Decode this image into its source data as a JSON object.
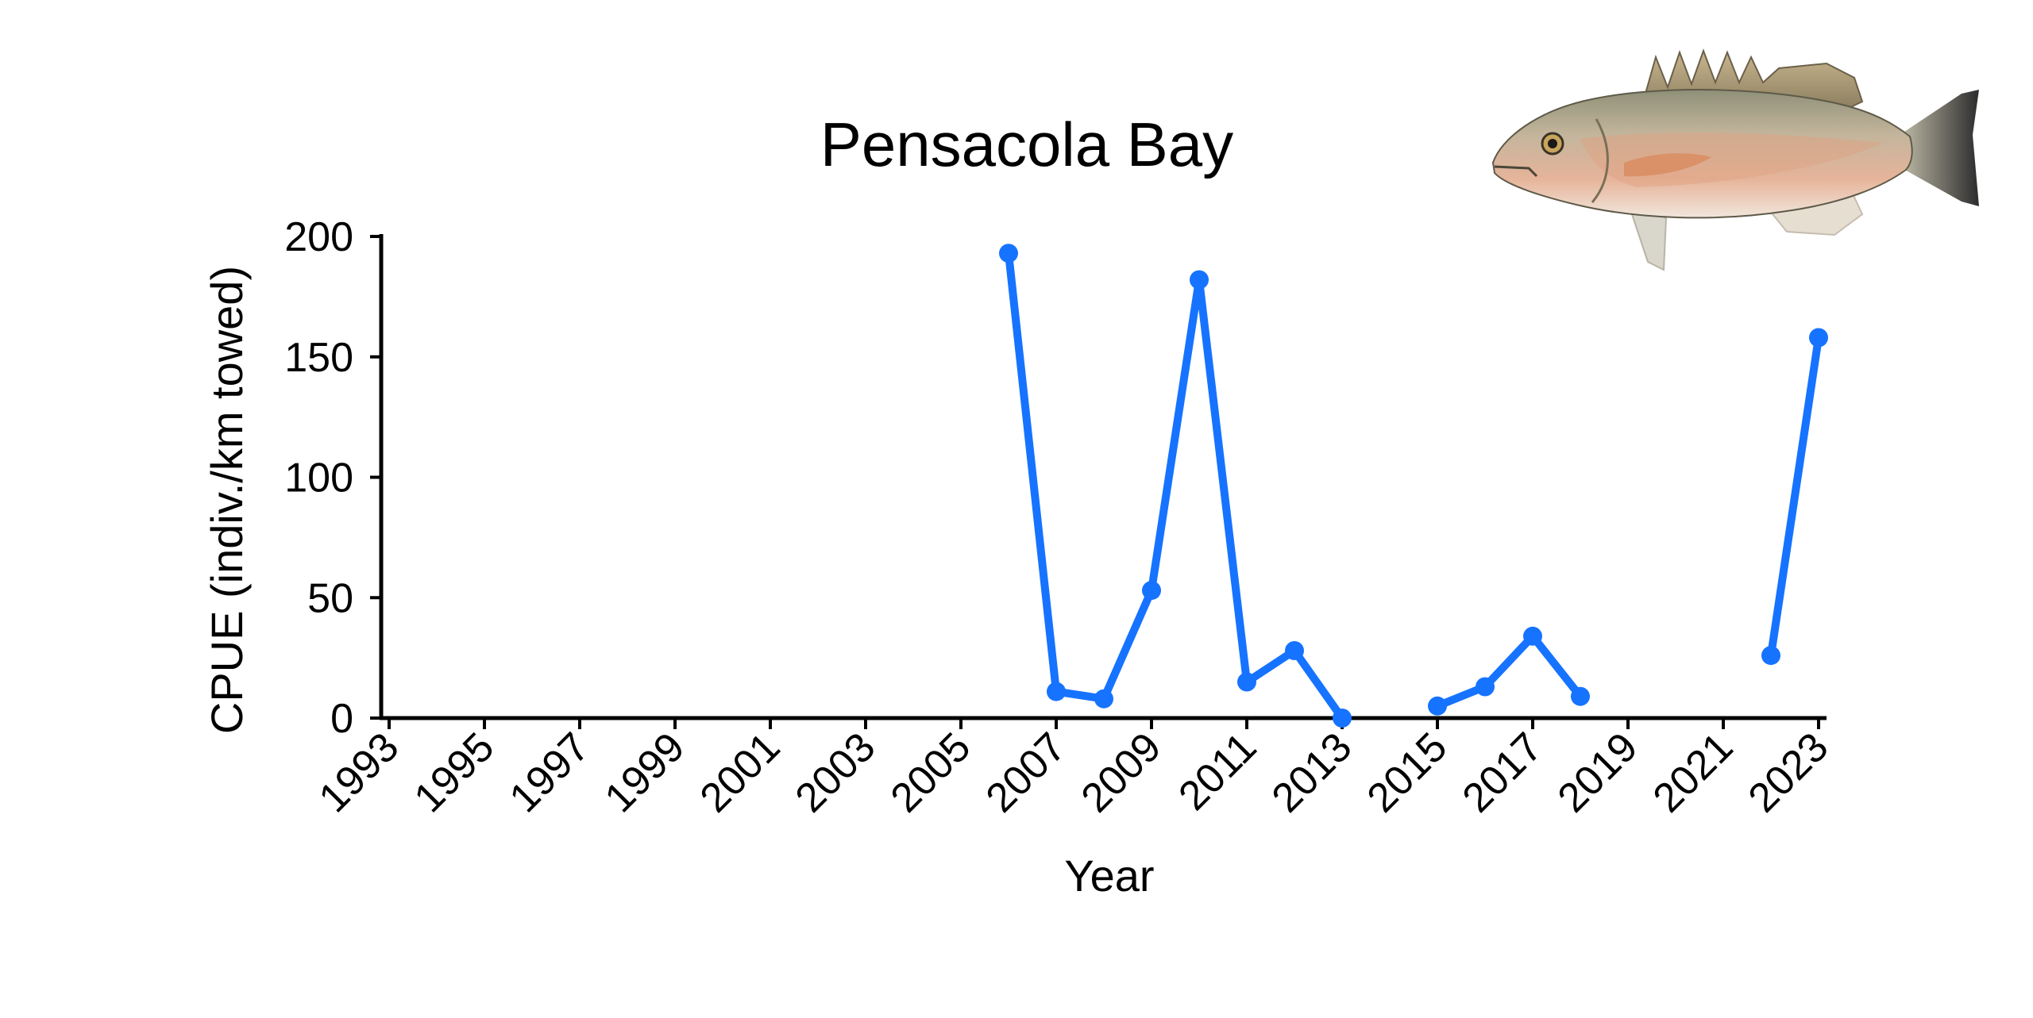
{
  "chart_data": {
    "type": "line",
    "title": "Pensacola Bay",
    "xlabel": "Year",
    "ylabel": "CPUE (indiv./km towed)",
    "xlim": [
      1993,
      2023
    ],
    "ylim": [
      0,
      200
    ],
    "xticks": [
      1993,
      1995,
      1997,
      1999,
      2001,
      2003,
      2005,
      2007,
      2009,
      2011,
      2013,
      2015,
      2017,
      2019,
      2021,
      2023
    ],
    "xtick_labels": [
      "1993",
      "1995",
      "1997",
      "1999",
      "2001",
      "2003",
      "2005",
      "2007",
      "2009",
      "2011",
      "2013",
      "2015",
      "2017",
      "2019",
      "2021",
      "2023"
    ],
    "yticks": [
      0,
      50,
      100,
      150,
      200
    ],
    "ytick_labels": [
      "0",
      "50",
      "100",
      "150",
      "200"
    ],
    "grid": false,
    "series": [
      {
        "color": "#1673FF",
        "segments": [
          [
            [
              2006,
              193
            ],
            [
              2007,
              11
            ],
            [
              2008,
              8
            ],
            [
              2009,
              53
            ],
            [
              2010,
              182
            ],
            [
              2011,
              15
            ],
            [
              2012,
              28
            ],
            [
              2013,
              0
            ]
          ],
          [
            [
              2015,
              5
            ],
            [
              2016,
              13
            ],
            [
              2017,
              34
            ],
            [
              2018,
              9
            ]
          ],
          [
            [
              2022,
              26
            ],
            [
              2023,
              158
            ]
          ]
        ]
      }
    ]
  },
  "illustration": {
    "icon": "mutton-snapper-fish-icon"
  }
}
